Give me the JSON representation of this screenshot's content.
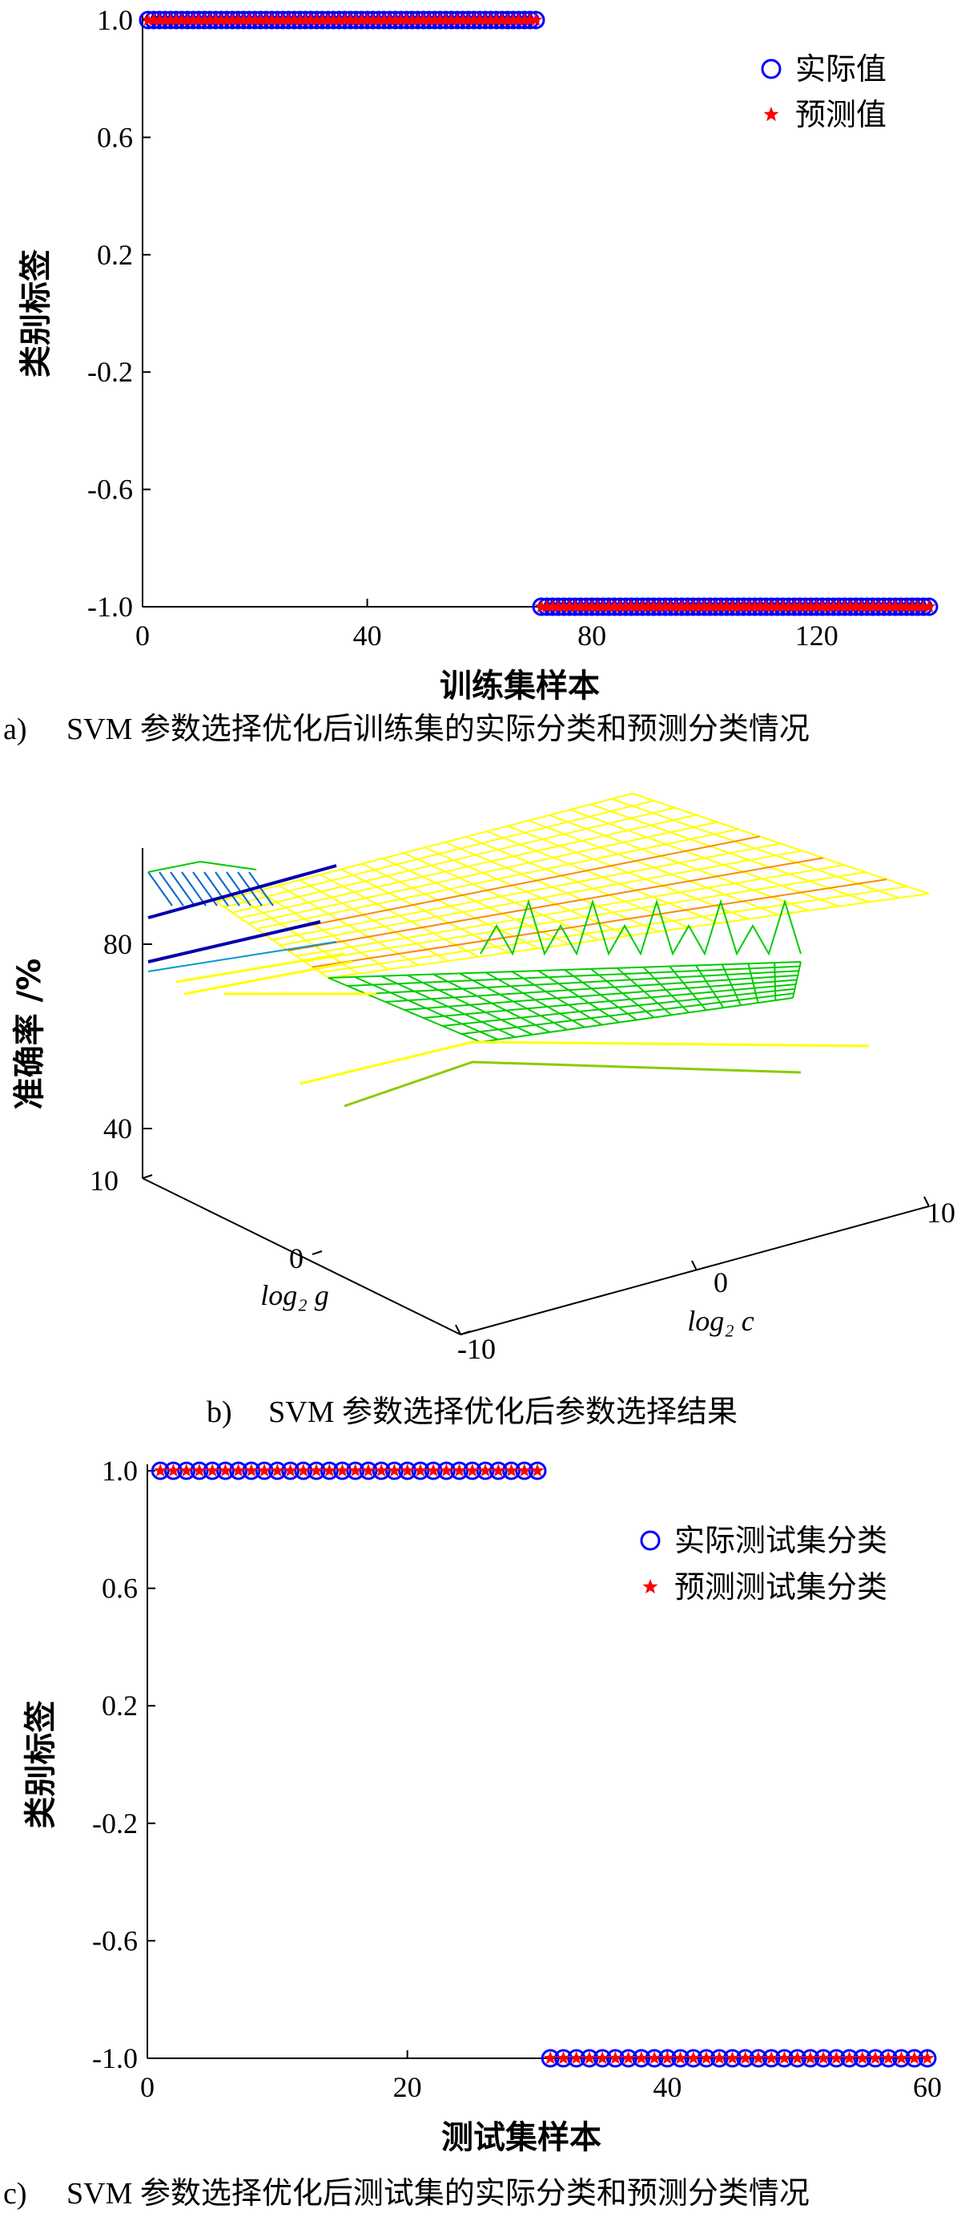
{
  "chart_data": [
    {
      "id": "a",
      "type": "scatter",
      "caption_prefix": "a)",
      "caption": "SVM 参数选择优化后训练集的实际分类和预测分类情况",
      "xlabel": "训练集样本",
      "ylabel": "类别标签",
      "xlim": [
        0,
        140
      ],
      "ylim": [
        -1.0,
        1.0
      ],
      "xticks": [
        "0",
        "40",
        "80",
        "120"
      ],
      "xtick_values": [
        0,
        40,
        80,
        120
      ],
      "yticks": [
        "1.0",
        "0.6",
        "0.2",
        "-0.2",
        "-0.6",
        "-1.0"
      ],
      "ytick_values": [
        1.0,
        0.6,
        0.2,
        -0.2,
        -0.6,
        -1.0
      ],
      "legend_position": "top-right",
      "grid": false,
      "series": [
        {
          "name": "实际值",
          "marker": "circle",
          "color": "#0000ff",
          "segments": [
            {
              "x_from": 1,
              "x_to": 70,
              "y": 1
            },
            {
              "x_from": 71,
              "x_to": 140,
              "y": -1
            }
          ]
        },
        {
          "name": "预测值",
          "marker": "star",
          "color": "#ff0000",
          "segments": [
            {
              "x_from": 1,
              "x_to": 70,
              "y": 1
            },
            {
              "x_from": 71,
              "x_to": 140,
              "y": -1
            }
          ]
        }
      ]
    },
    {
      "id": "b",
      "type": "surface",
      "caption_prefix": "b)",
      "caption": "SVM 参数选择优化后参数选择结果",
      "xlabel": "log₂ c",
      "ylabel": "log₂ g",
      "zlabel": "准确率 /%",
      "xticks": [
        "-10",
        "0",
        "10"
      ],
      "yticks": [
        "10",
        "0",
        "-10"
      ],
      "zticks": [
        "80",
        "40"
      ],
      "xlim": [
        -10,
        10
      ],
      "ylim": [
        -10,
        10
      ],
      "zlim": [
        40,
        100
      ],
      "colors": {
        "high": "#ffff00",
        "mid": "#00cc00",
        "low": "#0000aa",
        "edge": "#ff8800"
      }
    },
    {
      "id": "c",
      "type": "scatter",
      "caption_prefix": "c)",
      "caption": "SVM 参数选择优化后测试集的实际分类和预测分类情况",
      "xlabel": "测试集样本",
      "ylabel": "类别标签",
      "xlim": [
        0,
        60
      ],
      "ylim": [
        -1.0,
        1.0
      ],
      "xticks": [
        "0",
        "20",
        "40",
        "60"
      ],
      "xtick_values": [
        0,
        20,
        40,
        60
      ],
      "yticks": [
        "1.0",
        "0.6",
        "0.2",
        "-0.2",
        "-0.6",
        "-1.0"
      ],
      "ytick_values": [
        1.0,
        0.6,
        0.2,
        -0.2,
        -0.6,
        -1.0
      ],
      "legend_position": "top-right",
      "grid": false,
      "series": [
        {
          "name": "实际测试集分类",
          "marker": "circle",
          "color": "#0000ff",
          "segments": [
            {
              "x_from": 1,
              "x_to": 30,
              "y": 1
            },
            {
              "x_from": 31,
              "x_to": 60,
              "y": -1
            }
          ]
        },
        {
          "name": "预测测试集分类",
          "marker": "star",
          "color": "#ff0000",
          "segments": [
            {
              "x_from": 1,
              "x_to": 30,
              "y": 1
            },
            {
              "x_from": 31,
              "x_to": 60,
              "y": -1
            }
          ]
        }
      ]
    }
  ]
}
